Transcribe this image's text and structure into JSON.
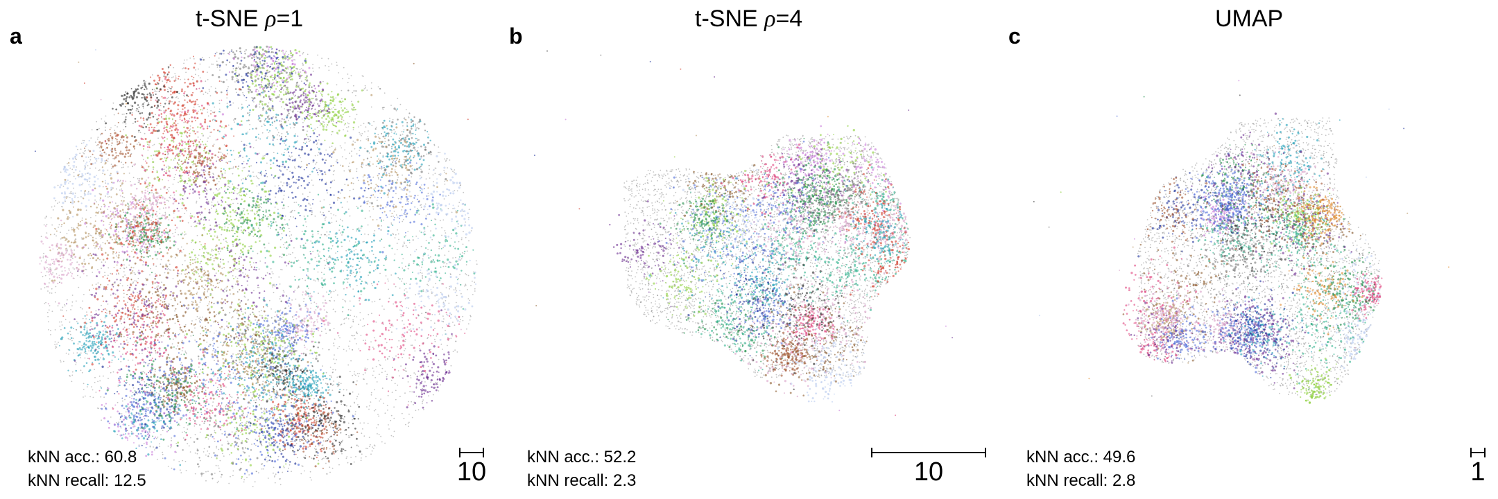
{
  "panels": [
    {
      "letter": "a",
      "title_prefix": "t-SNE ",
      "title_symbol": "ρ",
      "title_suffix": "=1",
      "knn_acc": "kNN acc.: 60.8",
      "knn_recall": "kNN recall: 12.5",
      "scale_label": "10"
    },
    {
      "letter": "b",
      "title_prefix": "t-SNE ",
      "title_symbol": "ρ",
      "title_suffix": "=4",
      "knn_acc": "kNN acc.: 52.2",
      "knn_recall": "kNN recall: 2.3",
      "scale_label": "10"
    },
    {
      "letter": "c",
      "title_prefix": "UMAP",
      "title_symbol": "",
      "title_suffix": "",
      "knn_acc": "kNN acc.: 49.6",
      "knn_recall": "kNN recall: 2.8",
      "scale_label": "1"
    }
  ],
  "chart_data": [
    {
      "type": "scatter",
      "title": "t-SNE ρ=1",
      "kNN_accuracy": 60.8,
      "kNN_recall": 12.5,
      "scale_bar": 10,
      "colors": [
        "#1f8f4a",
        "#d23c2b",
        "#8b5a2b",
        "#6a2c8f",
        "#4f6bd8",
        "#b7c9ef",
        "#2a2a2a",
        "#e0882a",
        "#8ccf3a",
        "#1f9fb8",
        "#e0457e",
        "#c878d8",
        "#1a2f9a",
        "#777777",
        "#b28f5c",
        "#2fb08c",
        "#a0522d",
        "#d8a0c8"
      ]
    },
    {
      "type": "scatter",
      "title": "t-SNE ρ=4",
      "kNN_accuracy": 52.2,
      "kNN_recall": 2.3,
      "scale_bar": 10,
      "colors": [
        "#1f8f4a",
        "#d23c2b",
        "#8b5a2b",
        "#6a2c8f",
        "#4f6bd8",
        "#b7c9ef",
        "#2a2a2a",
        "#e0882a",
        "#8ccf3a",
        "#1f9fb8",
        "#e0457e",
        "#c878d8",
        "#1a2f9a",
        "#777777",
        "#b28f5c",
        "#2fb08c",
        "#a0522d",
        "#d8a0c8"
      ]
    },
    {
      "type": "scatter",
      "title": "UMAP",
      "kNN_accuracy": 49.6,
      "kNN_recall": 2.8,
      "scale_bar": 1,
      "colors": [
        "#1f8f4a",
        "#d23c2b",
        "#8b5a2b",
        "#6a2c8f",
        "#4f6bd8",
        "#b7c9ef",
        "#2a2a2a",
        "#e0882a",
        "#8ccf3a",
        "#1f9fb8",
        "#e0457e",
        "#c878d8",
        "#1a2f9a",
        "#777777",
        "#b28f5c",
        "#2fb08c",
        "#a0522d",
        "#d8a0c8"
      ]
    }
  ]
}
